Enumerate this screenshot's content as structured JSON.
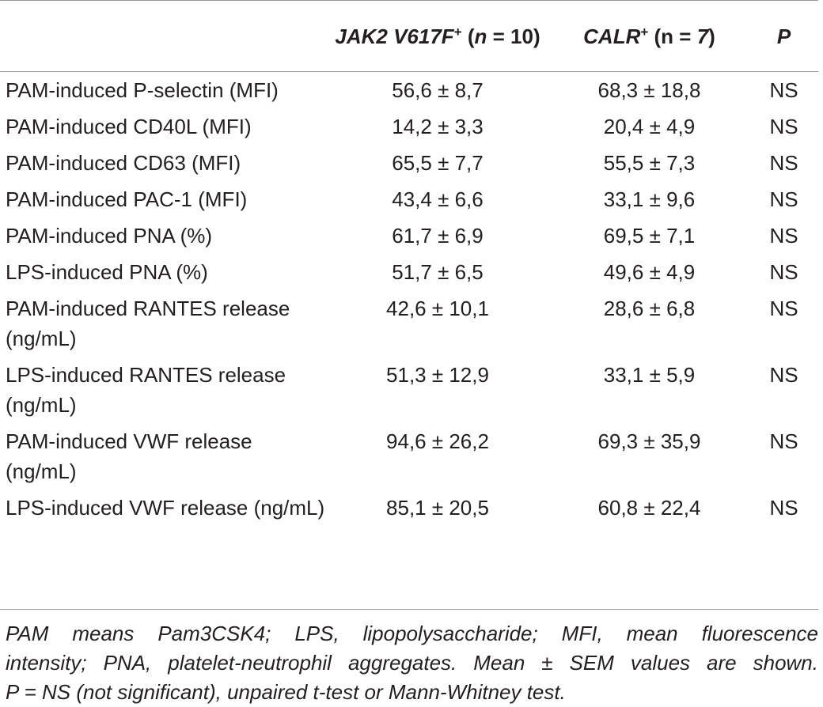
{
  "table": {
    "headers": {
      "parameter": "",
      "jak2_name": "JAK2 V617F",
      "jak2_sup": "+",
      "jak2_n_open": " (",
      "jak2_n_var": "n",
      "jak2_n_rest": " = 10)",
      "calr_name": "CALR",
      "calr_sup": "+",
      "calr_n": " (n = ",
      "calr_n_val": "7",
      "calr_close": ")",
      "p": "P"
    },
    "rows": [
      {
        "param": "PAM-induced P-selectin (MFI)",
        "jak2": "56,6 ± 8,7",
        "calr": "68,3 ± 18,8",
        "p": "NS"
      },
      {
        "param": "PAM-induced CD40L (MFI)",
        "jak2": "14,2 ± 3,3",
        "calr": "20,4 ± 4,9",
        "p": "NS"
      },
      {
        "param": "PAM-induced CD63 (MFI)",
        "jak2": "65,5 ± 7,7",
        "calr": "55,5 ± 7,3",
        "p": "NS"
      },
      {
        "param": "PAM-induced PAC-1 (MFI)",
        "jak2": "43,4 ± 6,6",
        "calr": "33,1 ± 9,6",
        "p": "NS"
      },
      {
        "param": "PAM-induced PNA (%)",
        "jak2": "61,7 ± 6,9",
        "calr": "69,5 ± 7,1",
        "p": "NS"
      },
      {
        "param": "LPS-induced PNA (%)",
        "jak2": "51,7 ± 6,5",
        "calr": "49,6 ± 4,9",
        "p": "NS"
      },
      {
        "param": "PAM-induced RANTES release (ng/mL)",
        "jak2": "42,6 ± 10,1",
        "calr": "28,6 ± 6,8",
        "p": "NS"
      },
      {
        "param": "LPS-induced RANTES release (ng/mL)",
        "jak2": "51,3 ± 12,9",
        "calr": "33,1 ± 5,9",
        "p": "NS"
      },
      {
        "param": "PAM-induced VWF release (ng/mL)",
        "jak2": "94,6 ± 26,2",
        "calr": "69,3 ± 35,9",
        "p": "NS"
      },
      {
        "param": "LPS-induced VWF release (ng/mL)",
        "jak2": "85,1 ± 20,5",
        "calr": "60,8 ± 22,4",
        "p": "NS"
      }
    ]
  },
  "footnote": {
    "line1": "PAM means Pam3CSK4; LPS, lipopolysaccharide; MFI, mean fluorescence",
    "line2": "intensity; PNA, platelet-neutrophil aggregates. Mean ± SEM values are shown.",
    "line3": "P = NS (not significant), unpaired t-test or Mann-Whitney test."
  }
}
